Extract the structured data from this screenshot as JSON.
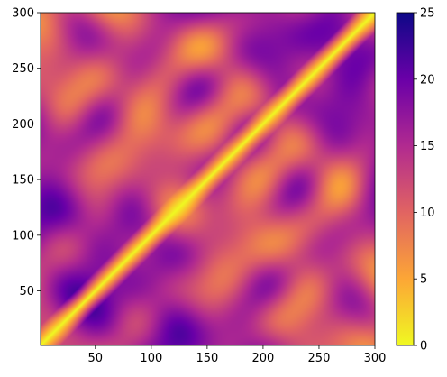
{
  "chart_data": {
    "type": "heatmap",
    "description": "distance matrix heatmap",
    "title": "",
    "xlabel": "",
    "ylabel": "",
    "xlim": [
      1,
      300
    ],
    "ylim": [
      1,
      300
    ],
    "x_ticks": [
      50,
      100,
      150,
      200,
      250,
      300
    ],
    "y_ticks": [
      50,
      100,
      150,
      200,
      250,
      300
    ],
    "colormap": "plasma_r",
    "colorbar": {
      "min": 0,
      "max": 25,
      "ticks": [
        0,
        5,
        10,
        15,
        20,
        25
      ],
      "color_stops": [
        "#f0f921",
        "#fca636",
        "#e16462",
        "#b12a90",
        "#6a00a8",
        "#0d0887"
      ]
    },
    "values": {
      "diagonal": 0,
      "typical_range": [
        2,
        24
      ],
      "symmetric": true
    },
    "grid": false,
    "colorbar_position": "right"
  }
}
